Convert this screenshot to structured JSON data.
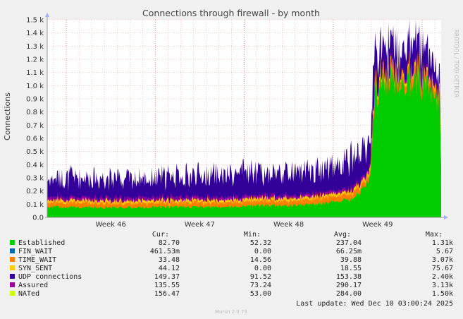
{
  "chart_data": {
    "type": "area",
    "title": "Connections through firewall - by month",
    "ylabel": "Connections",
    "side_label": "RRDTOOL / TOBI OETIKER",
    "ylim": [
      0,
      1500
    ],
    "y_ticks": [
      {
        "v": 0,
        "label": "0.0"
      },
      {
        "v": 100,
        "label": "0.1 k"
      },
      {
        "v": 200,
        "label": "0.2 k"
      },
      {
        "v": 300,
        "label": "0.3 k"
      },
      {
        "v": 400,
        "label": "0.4 k"
      },
      {
        "v": 500,
        "label": "0.5 k"
      },
      {
        "v": 600,
        "label": "0.6 k"
      },
      {
        "v": 700,
        "label": "0.7 k"
      },
      {
        "v": 800,
        "label": "0.8 k"
      },
      {
        "v": 900,
        "label": "0.9 k"
      },
      {
        "v": 1000,
        "label": "1.0 k"
      },
      {
        "v": 1100,
        "label": "1.1 k"
      },
      {
        "v": 1200,
        "label": "1.2 k"
      },
      {
        "v": 1300,
        "label": "1.3 k"
      },
      {
        "v": 1400,
        "label": "1.4 k"
      },
      {
        "v": 1500,
        "label": "1.5 k"
      }
    ],
    "x_range": [
      0,
      31
    ],
    "x_labels": [
      {
        "x": 5.0,
        "label": "Week 46"
      },
      {
        "x": 12.0,
        "label": "Week 47"
      },
      {
        "x": 19.0,
        "label": "Week 48"
      },
      {
        "x": 26.0,
        "label": "Week 49"
      }
    ],
    "x_major_grid": [
      1.5,
      8.5,
      15.5,
      22.5,
      29.5
    ],
    "envelope": [
      {
        "x": 0,
        "established": 80,
        "timewait": 35,
        "udp": 140
      },
      {
        "x": 1,
        "established": 80,
        "timewait": 35,
        "udp": 150
      },
      {
        "x": 2,
        "established": 78,
        "timewait": 35,
        "udp": 160
      },
      {
        "x": 3,
        "established": 78,
        "timewait": 35,
        "udp": 155
      },
      {
        "x": 4,
        "established": 75,
        "timewait": 34,
        "udp": 160
      },
      {
        "x": 5,
        "established": 75,
        "timewait": 34,
        "udp": 155
      },
      {
        "x": 6,
        "established": 75,
        "timewait": 34,
        "udp": 150
      },
      {
        "x": 7,
        "established": 75,
        "timewait": 34,
        "udp": 150
      },
      {
        "x": 8,
        "established": 75,
        "timewait": 34,
        "udp": 145
      },
      {
        "x": 9,
        "established": 78,
        "timewait": 34,
        "udp": 160
      },
      {
        "x": 10,
        "established": 78,
        "timewait": 34,
        "udp": 170
      },
      {
        "x": 11,
        "established": 78,
        "timewait": 35,
        "udp": 165
      },
      {
        "x": 12,
        "established": 80,
        "timewait": 35,
        "udp": 170
      },
      {
        "x": 13,
        "established": 80,
        "timewait": 35,
        "udp": 175
      },
      {
        "x": 14,
        "established": 80,
        "timewait": 35,
        "udp": 165
      },
      {
        "x": 15,
        "established": 85,
        "timewait": 36,
        "udp": 180
      },
      {
        "x": 16,
        "established": 88,
        "timewait": 36,
        "udp": 190
      },
      {
        "x": 17,
        "established": 88,
        "timewait": 36,
        "udp": 175
      },
      {
        "x": 18,
        "established": 90,
        "timewait": 36,
        "udp": 185
      },
      {
        "x": 19,
        "established": 92,
        "timewait": 37,
        "udp": 180
      },
      {
        "x": 20,
        "established": 95,
        "timewait": 37,
        "udp": 175
      },
      {
        "x": 21,
        "established": 100,
        "timewait": 38,
        "udp": 185
      },
      {
        "x": 22,
        "established": 110,
        "timewait": 40,
        "udp": 190
      },
      {
        "x": 23,
        "established": 120,
        "timewait": 40,
        "udp": 200
      },
      {
        "x": 24,
        "established": 140,
        "timewait": 45,
        "udp": 230
      },
      {
        "x": 25,
        "established": 240,
        "timewait": 40,
        "udp": 200
      },
      {
        "x": 25.4,
        "established": 300,
        "timewait": 40,
        "udp": 200
      },
      {
        "x": 25.8,
        "established": 950,
        "timewait": 60,
        "udp": 240
      },
      {
        "x": 26.5,
        "established": 1050,
        "timewait": 60,
        "udp": 190
      },
      {
        "x": 27.5,
        "established": 1060,
        "timewait": 55,
        "udp": 170
      },
      {
        "x": 28.5,
        "established": 1040,
        "timewait": 60,
        "udp": 190
      },
      {
        "x": 29.5,
        "established": 1030,
        "timewait": 60,
        "udp": 185
      },
      {
        "x": 30.0,
        "established": 990,
        "timewait": 55,
        "udp": 170
      },
      {
        "x": 30.5,
        "established": 960,
        "timewait": 50,
        "udp": 130
      },
      {
        "x": 30.9,
        "established": 880,
        "timewait": 40,
        "udp": 100
      },
      {
        "x": 31,
        "established": 150,
        "timewait": 40,
        "udp": 130
      }
    ],
    "colors": {
      "established": "#00cc00",
      "fin_wait": "#0066b3",
      "time_wait": "#ff8000",
      "syn_sent": "#ffcc00",
      "udp": "#330099",
      "assured": "#990099",
      "nated": "#ccff00"
    },
    "legend_headers": {
      "cur": "Cur:",
      "min": "Min:",
      "avg": "Avg:",
      "max": "Max:"
    },
    "legend": [
      {
        "name": "Established",
        "color": "#00cc00",
        "cur": "82.70",
        "min": "52.32",
        "avg": "237.04",
        "max": "1.31k"
      },
      {
        "name": "FIN_WAIT",
        "color": "#0066b3",
        "cur": "461.53m",
        "min": "0.00",
        "avg": "66.25m",
        "max": "5.67"
      },
      {
        "name": "TIME_WAIT",
        "color": "#ff8000",
        "cur": "33.48",
        "min": "14.56",
        "avg": "39.88",
        "max": "3.07k"
      },
      {
        "name": "SYN_SENT",
        "color": "#ffcc00",
        "cur": "44.12",
        "min": "0.00",
        "avg": "18.55",
        "max": "75.67"
      },
      {
        "name": "UDP connections",
        "color": "#330099",
        "cur": "149.37",
        "min": "91.52",
        "avg": "153.38",
        "max": "2.40k"
      },
      {
        "name": "Assured",
        "color": "#990099",
        "cur": "135.55",
        "min": "73.24",
        "avg": "290.17",
        "max": "3.13k"
      },
      {
        "name": "NATed",
        "color": "#ccff00",
        "cur": "156.47",
        "min": "53.00",
        "avg": "284.00",
        "max": "1.50k"
      }
    ],
    "last_update": "Last update: Wed Dec 10 03:00:24 2025",
    "footer": "Munin 2.0.73"
  }
}
